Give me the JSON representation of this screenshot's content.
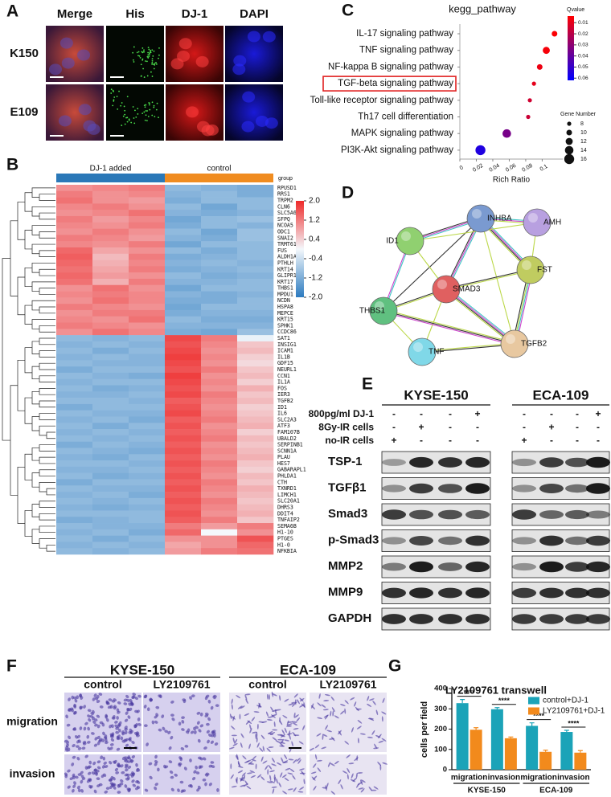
{
  "panel_a": {
    "letter": "A",
    "columns": [
      "Merge",
      "His",
      "DJ-1",
      "DAPI"
    ],
    "rows": [
      "K150",
      "E109"
    ]
  },
  "panel_b": {
    "letter": "B",
    "groups": [
      "DJ-1 added",
      "control"
    ],
    "group_label": "group",
    "scale_ticks": [
      {
        "value": 2,
        "label": "2.0"
      },
      1.2,
      0.4,
      -0.4,
      -1.2,
      {
        "value": -2,
        "label": "-2.0"
      }
    ],
    "genes": [
      "RPUSD1",
      "RRS1",
      "TRPM2",
      "CLN6",
      "SLC5A6",
      "SFPQ",
      "NCOA5",
      "ODC1",
      "SNAI2",
      "TRMT61A",
      "FUS",
      "ALDH1A3",
      "PTHLH",
      "KRT14",
      "GLIPR1",
      "KRT17",
      "THBS1",
      "MPDU1",
      "NCDN",
      "HSPA8",
      "MEPCE",
      "KRT15",
      "SPHK1",
      "CCDC86",
      "SAT1",
      "INSIG1",
      "ICAM1",
      "IL1B",
      "GDF15",
      "NEURL1",
      "CCN1",
      "IL1A",
      "FOS",
      "IER3",
      "TGFB2",
      "ID1",
      "IL6",
      "SLC2A3",
      "ATF3",
      "FAM107B",
      "UBALD2",
      "SERPINB1",
      "SCNN1A",
      "PLAU",
      "HES7",
      "GABARAPL1",
      "PHLDA1",
      "CTH",
      "TXNRD1",
      "LIMCH1",
      "SLC20A1",
      "DHRS3",
      "DDIT4",
      "TNFAIP2",
      "SEMA6B",
      "H1-10",
      "PTGES",
      "H1-0",
      "NFKBIA"
    ],
    "values": [
      [
        1.0,
        1.1,
        1.2,
        -1.0,
        -1.1,
        -1.2
      ],
      [
        1.2,
        1.0,
        1.1,
        -1.1,
        -1.0,
        -1.2
      ],
      [
        1.3,
        1.0,
        0.9,
        -1.2,
        -1.0,
        -1.0
      ],
      [
        1.1,
        1.2,
        1.0,
        -1.0,
        -1.3,
        -1.0
      ],
      [
        1.0,
        1.1,
        1.3,
        -1.1,
        -1.2,
        -1.1
      ],
      [
        1.2,
        0.9,
        1.1,
        -1.3,
        -1.0,
        -0.9
      ],
      [
        1.1,
        1.0,
        1.2,
        -1.2,
        -1.0,
        -1.1
      ],
      [
        1.0,
        1.2,
        1.0,
        -1.0,
        -1.3,
        -0.9
      ],
      [
        1.2,
        1.1,
        0.9,
        -1.1,
        -1.2,
        -0.9
      ],
      [
        1.1,
        1.0,
        1.2,
        -1.3,
        -1.0,
        -1.0
      ],
      [
        1.4,
        0.8,
        1.0,
        -1.0,
        -1.2,
        -1.0
      ],
      [
        1.5,
        0.6,
        1.2,
        -1.2,
        -1.1,
        -1.0
      ],
      [
        1.4,
        0.7,
        1.1,
        -1.1,
        -1.0,
        -1.1
      ],
      [
        1.3,
        0.8,
        1.2,
        -1.2,
        -1.1,
        -1.0
      ],
      [
        1.4,
        0.9,
        1.0,
        -1.0,
        -1.2,
        -1.1
      ],
      [
        1.3,
        0.7,
        1.2,
        -1.1,
        -1.1,
        -1.0
      ],
      [
        1.0,
        1.3,
        1.0,
        -1.3,
        -1.0,
        -1.0
      ],
      [
        1.1,
        1.2,
        1.1,
        -1.1,
        -1.2,
        -1.1
      ],
      [
        1.0,
        1.3,
        1.1,
        -1.2,
        -1.2,
        -1.0
      ],
      [
        1.2,
        1.1,
        1.0,
        -1.3,
        -1.0,
        -1.0
      ],
      [
        1.0,
        1.2,
        1.2,
        -1.2,
        -1.1,
        -1.1
      ],
      [
        1.1,
        1.0,
        1.3,
        -1.0,
        -1.2,
        -1.2
      ],
      [
        1.2,
        1.1,
        1.0,
        -1.1,
        -1.1,
        -1.1
      ],
      [
        1.0,
        1.3,
        1.1,
        -1.2,
        -1.3,
        -0.9
      ],
      [
        -1.0,
        -1.1,
        -1.0,
        1.7,
        1.2,
        -0.1
      ],
      [
        -1.1,
        -1.0,
        -1.1,
        1.6,
        1.1,
        0.5
      ],
      [
        -1.0,
        -1.2,
        -1.0,
        1.7,
        1.0,
        0.6
      ],
      [
        -1.1,
        -1.0,
        -1.1,
        1.8,
        1.1,
        0.4
      ],
      [
        -1.0,
        -1.1,
        -1.1,
        1.7,
        1.0,
        0.3
      ],
      [
        -1.2,
        -1.0,
        -1.0,
        1.6,
        1.2,
        0.5
      ],
      [
        -1.0,
        -1.1,
        -1.2,
        1.8,
        1.0,
        0.6
      ],
      [
        -1.1,
        -1.0,
        -1.0,
        1.7,
        1.1,
        0.4
      ],
      [
        -1.0,
        -1.2,
        -1.1,
        1.6,
        1.0,
        0.7
      ],
      [
        -1.1,
        -1.1,
        -1.0,
        1.7,
        1.2,
        0.5
      ],
      [
        -1.0,
        -1.0,
        -1.1,
        1.5,
        1.1,
        0.6
      ],
      [
        -1.2,
        -1.0,
        -1.0,
        1.6,
        1.0,
        0.4
      ],
      [
        -1.0,
        -1.1,
        -1.1,
        1.7,
        1.1,
        0.5
      ],
      [
        -1.1,
        -1.0,
        -1.2,
        1.5,
        1.2,
        0.6
      ],
      [
        -1.0,
        -1.2,
        -1.0,
        1.6,
        1.0,
        0.7
      ],
      [
        -1.1,
        -1.0,
        -1.1,
        1.5,
        1.1,
        0.4
      ],
      [
        -1.0,
        -1.1,
        -1.0,
        1.6,
        1.2,
        0.6
      ],
      [
        -1.2,
        -1.0,
        -1.1,
        1.5,
        1.0,
        0.5
      ],
      [
        -1.0,
        -1.1,
        -1.2,
        1.6,
        1.1,
        0.6
      ],
      [
        -1.1,
        -1.2,
        -1.0,
        1.5,
        1.0,
        0.7
      ],
      [
        -1.0,
        -1.0,
        -1.1,
        1.6,
        1.2,
        0.5
      ],
      [
        -1.1,
        -1.1,
        -1.0,
        1.5,
        1.1,
        0.4
      ],
      [
        -1.0,
        -1.2,
        -1.1,
        1.6,
        1.0,
        0.6
      ],
      [
        -1.2,
        -1.0,
        -1.0,
        1.5,
        1.2,
        0.5
      ],
      [
        -1.0,
        -1.1,
        -1.1,
        1.6,
        1.1,
        0.7
      ],
      [
        -1.1,
        -1.0,
        -1.2,
        1.5,
        1.0,
        0.6
      ],
      [
        -1.0,
        -1.1,
        -1.0,
        1.6,
        1.2,
        0.5
      ],
      [
        -1.1,
        -1.2,
        -1.1,
        1.5,
        1.1,
        0.6
      ],
      [
        -1.0,
        -1.0,
        -1.0,
        1.6,
        1.0,
        0.7
      ],
      [
        -1.2,
        -1.1,
        -1.0,
        1.5,
        1.2,
        0.5
      ],
      [
        -1.0,
        -1.1,
        -1.1,
        1.2,
        0.9,
        1.2
      ],
      [
        -1.1,
        -1.0,
        -1.2,
        1.4,
        0.0,
        1.0
      ],
      [
        -1.0,
        -1.2,
        -1.0,
        1.0,
        1.0,
        1.6
      ],
      [
        -1.1,
        -1.0,
        -1.1,
        0.8,
        1.0,
        1.4
      ],
      [
        -1.0,
        -1.1,
        -1.0,
        0.9,
        1.2,
        1.3
      ]
    ]
  },
  "chart_data": [
    {
      "type": "dot",
      "letter": "C",
      "title": "kegg_pathway",
      "categories": [
        "IL-17 signaling pathway",
        "TNF signaling pathway",
        "NF-kappa B signaling pathway",
        "TGF-beta signaling pathway",
        "Toll-like receptor signaling pathway",
        "Th17 cell differentiation",
        "MAPK signaling pathway",
        "PI3K-Akt signaling pathway"
      ],
      "values": [
        0.115,
        0.105,
        0.097,
        0.09,
        0.085,
        0.083,
        0.057,
        0.025
      ],
      "qvalues": [
        0.005,
        0.006,
        0.008,
        0.01,
        0.015,
        0.016,
        0.035,
        0.055
      ],
      "gene_numbers": [
        10,
        12,
        10,
        8,
        8,
        8,
        14,
        16
      ],
      "highlight": 3,
      "xlabel": "Rich Ratio",
      "xlim": [
        0,
        0.125
      ],
      "xticks": [
        0,
        0.02,
        0.04,
        0.06,
        0.08,
        0.1
      ],
      "color_legend": {
        "title": "Qvalue",
        "clim": [
          0.004,
          0.062
        ],
        "ticks": [
          0.01,
          0.02,
          0.03,
          0.04,
          0.05,
          0.06
        ],
        "colors": [
          "#ff0000",
          "#0000ff"
        ]
      },
      "size_legend": {
        "title": "Gene Number",
        "ticks": [
          8,
          10,
          12,
          14,
          16
        ]
      }
    },
    {
      "type": "bar",
      "letter": "G",
      "title": "LY2109761 transwell",
      "ylabel": "cells per field",
      "categories": [
        "migration",
        "invasion",
        "migration",
        "invasion"
      ],
      "category_groups": [
        "KYSE-150",
        "KYSE-150",
        "ECA-109",
        "ECA-109"
      ],
      "annotations": [
        "****",
        "****",
        "****",
        "****"
      ],
      "ylim": [
        0,
        400
      ],
      "yticks": [
        0,
        100,
        200,
        300,
        400
      ],
      "series": [
        {
          "name": "control+DJ-1",
          "color": "#1ba3b8",
          "values": [
            328,
            298,
            216,
            186
          ],
          "errors": [
            18,
            8,
            15,
            8
          ]
        },
        {
          "name": "LY2109761+DJ-1",
          "color": "#f28a1c",
          "values": [
            197,
            155,
            88,
            84
          ],
          "errors": [
            10,
            6,
            8,
            10
          ]
        }
      ]
    }
  ],
  "panel_d": {
    "letter": "D",
    "nodes": [
      "INHBA",
      "AMH",
      "ID1",
      "FST",
      "SMAD3",
      "THBS1",
      "TGFB2",
      "TNF"
    ]
  },
  "panel_e": {
    "letter": "E",
    "cell_lines": [
      "KYSE-150",
      "ECA-109"
    ],
    "conditions": [
      {
        "label": "800pg/ml DJ-1",
        "lanes": [
          "-",
          "-",
          "-",
          "+",
          "-",
          "-",
          "-",
          "+"
        ]
      },
      {
        "label": "8Gy-IR cells",
        "lanes": [
          "-",
          "+",
          "-",
          "-",
          "-",
          "+",
          "-",
          "-"
        ]
      },
      {
        "label": "no-IR cells",
        "lanes": [
          "+",
          "-",
          "-",
          "-",
          "+",
          "-",
          "-",
          "-"
        ]
      }
    ],
    "proteins": [
      "TSP-1",
      "TGFβ1",
      "Smad3",
      "p-Smad3",
      "MMP2",
      "MMP9",
      "GAPDH"
    ]
  },
  "panel_f": {
    "letter": "F",
    "cell_lines": [
      "KYSE-150",
      "ECA-109"
    ],
    "columns": [
      "control",
      "LY2109761",
      "control",
      "LY2109761"
    ],
    "rows": [
      "migration",
      "invasion"
    ]
  }
}
